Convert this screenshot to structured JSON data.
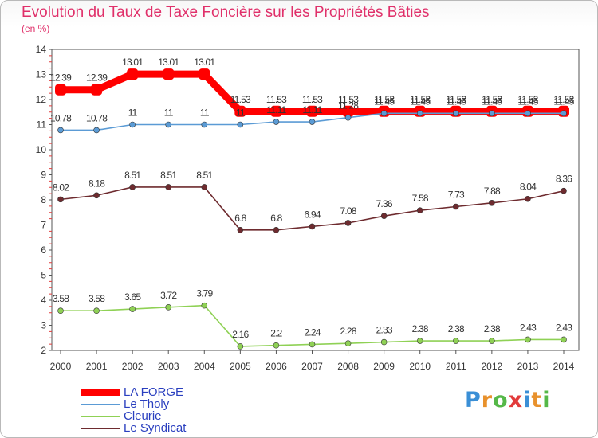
{
  "title": "Evolution du Taux de Taxe Foncière sur les Propriétés Bâties",
  "subtitle": "(en %)",
  "brand": {
    "text": "Proxiti",
    "colors": [
      "#3a8fd6",
      "#e8912c",
      "#55b848",
      "#e23b3b",
      "#3a8fd6",
      "#e8912c",
      "#55b848"
    ]
  },
  "chart_data": {
    "type": "line",
    "title": "Evolution du Taux de Taxe Foncière sur les Propriétés Bâties",
    "ylabel": "(en %)",
    "xlabel": "",
    "ylim": [
      2,
      14
    ],
    "y_ticks": [
      2,
      3,
      4,
      5,
      6,
      7,
      8,
      9,
      10,
      11,
      12,
      13,
      14
    ],
    "categories": [
      "2000",
      "2001",
      "2002",
      "2003",
      "2004",
      "2005",
      "2006",
      "2007",
      "2008",
      "2009",
      "2010",
      "2011",
      "2012",
      "2013",
      "2014"
    ],
    "grid": false,
    "legend_position": "bottom-left",
    "series": [
      {
        "name": "LA FORGE",
        "color": "#ff0000",
        "thick": true,
        "values": [
          12.39,
          12.39,
          13.01,
          13.01,
          13.01,
          11.53,
          11.53,
          11.53,
          11.53,
          11.53,
          11.53,
          11.53,
          11.53,
          11.53,
          11.53
        ],
        "labels": [
          "12.39",
          "12.39",
          "13.01",
          "13.01",
          "13.01",
          "11.53",
          "11.53",
          "11.53",
          "11.53",
          "11.53",
          "11.53",
          "11.53",
          "11.53",
          "11.53",
          "11.53"
        ]
      },
      {
        "name": "Le Tholy",
        "color": "#5b9bd5",
        "thick": false,
        "values": [
          10.78,
          10.78,
          11,
          11,
          11,
          11,
          11.11,
          11.11,
          11.28,
          11.45,
          11.45,
          11.45,
          11.45,
          11.45,
          11.45
        ],
        "labels": [
          "10.78",
          "10.78",
          "11",
          "11",
          "11",
          "11",
          "11.11",
          "11.11",
          "11.28",
          "11.45",
          "11.45",
          "11.45",
          "11.45",
          "11.45",
          "11.45"
        ]
      },
      {
        "name": "Cleurie",
        "color": "#8fd155",
        "thick": false,
        "values": [
          3.58,
          3.58,
          3.65,
          3.72,
          3.79,
          2.16,
          2.2,
          2.24,
          2.28,
          2.33,
          2.38,
          2.38,
          2.38,
          2.43,
          2.43
        ],
        "labels": [
          "3.58",
          "3.58",
          "3.65",
          "3.72",
          "3.79",
          "2.16",
          "2.2",
          "2.24",
          "2.28",
          "2.33",
          "2.38",
          "2.38",
          "2.38",
          "2.43",
          "2.43"
        ]
      },
      {
        "name": "Le Syndicat",
        "color": "#6e2b2f",
        "thick": false,
        "values": [
          8.02,
          8.18,
          8.51,
          8.51,
          8.51,
          6.8,
          6.8,
          6.94,
          7.08,
          7.36,
          7.58,
          7.73,
          7.88,
          8.04,
          8.36
        ],
        "labels": [
          "8.02",
          "8.18",
          "8.51",
          "8.51",
          "8.51",
          "6.8",
          "6.8",
          "6.94",
          "7.08",
          "7.36",
          "7.58",
          "7.73",
          "7.88",
          "8.04",
          "8.36"
        ]
      }
    ]
  }
}
